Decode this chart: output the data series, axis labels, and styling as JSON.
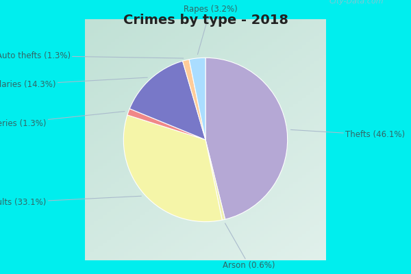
{
  "title": "Crimes by type - 2018",
  "title_fontsize": 14,
  "labels": [
    "Thefts",
    "Arson",
    "Assaults",
    "Robberies",
    "Burglaries",
    "Auto thefts",
    "Rapes"
  ],
  "percentages": [
    46.1,
    0.6,
    33.1,
    1.3,
    14.3,
    1.3,
    3.2
  ],
  "pie_colors": [
    "#b5a8d5",
    "#f0f0b0",
    "#f5f5a8",
    "#f08888",
    "#7878c8",
    "#ffcc99",
    "#aaddff"
  ],
  "border_color": "#00eeee",
  "inner_bg_top_left": "#b8ddd0",
  "inner_bg_bottom_right": "#e8f4f0",
  "text_color": "#336666",
  "line_color": "#aabbcc",
  "watermark": "City-Data.com",
  "label_fontsize": 8.5
}
